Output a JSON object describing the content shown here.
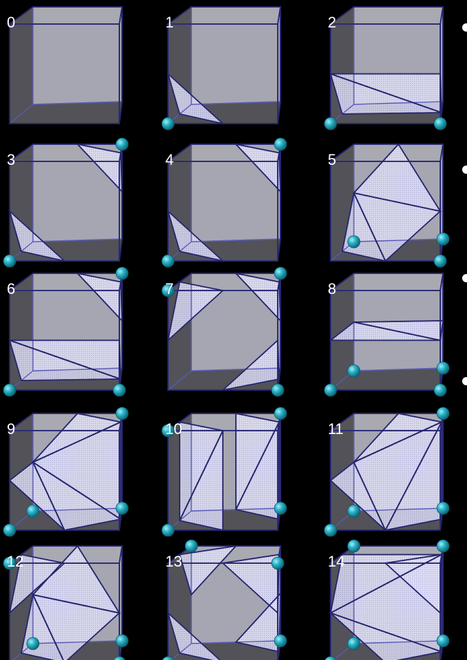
{
  "title": "",
  "cases": [
    {
      "label": "0"
    },
    {
      "label": "1"
    },
    {
      "label": "2"
    },
    {
      "label": "3"
    },
    {
      "label": "4"
    },
    {
      "label": "5"
    },
    {
      "label": "6"
    },
    {
      "label": "7"
    },
    {
      "label": "8"
    },
    {
      "label": "9"
    },
    {
      "label": "10"
    },
    {
      "label": "11"
    },
    {
      "label": "12"
    },
    {
      "label": "13"
    },
    {
      "label": "14"
    }
  ],
  "colors": {
    "background": "#000000",
    "cube_face": "#ebebfb",
    "cube_edge": "#4a4ab0",
    "triangle_edge": "#25256e",
    "vertex_ball": "#2bb3c8"
  }
}
